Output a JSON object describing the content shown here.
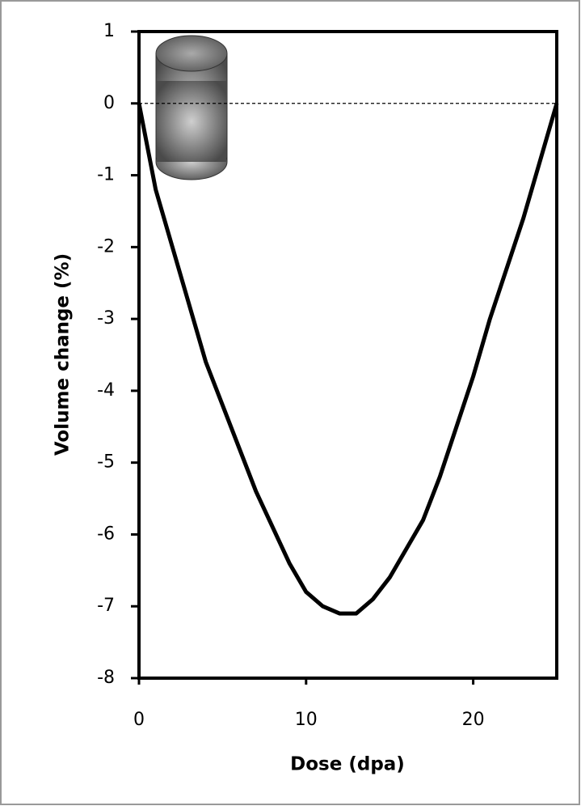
{
  "chart_data": {
    "type": "line",
    "xlabel": "Dose (dpa)",
    "ylabel": "Volume change (%)",
    "x": [
      0,
      1,
      2,
      3,
      4,
      5,
      6,
      7,
      8,
      9,
      10,
      11,
      12,
      13,
      14,
      15,
      16,
      17,
      18,
      19,
      20,
      21,
      22,
      23,
      24,
      25
    ],
    "series": [
      {
        "color": "#000000",
        "values": [
          0,
          -1.2,
          -2.0,
          -2.8,
          -3.6,
          -4.2,
          -4.8,
          -5.4,
          -5.9,
          -6.4,
          -6.8,
          -7.0,
          -7.1,
          -7.1,
          -6.9,
          -6.6,
          -6.2,
          -5.8,
          -5.2,
          -4.5,
          -3.8,
          -3.0,
          -2.3,
          -1.6,
          -0.8,
          0
        ]
      }
    ],
    "hline": 0,
    "xlim": [
      0,
      25
    ],
    "xticks": [
      0,
      10,
      20
    ],
    "ylim": [
      -8,
      1
    ],
    "yticks": [
      -8,
      -7,
      -6,
      -5,
      -4,
      -3,
      -2,
      -1,
      0,
      1
    ]
  }
}
